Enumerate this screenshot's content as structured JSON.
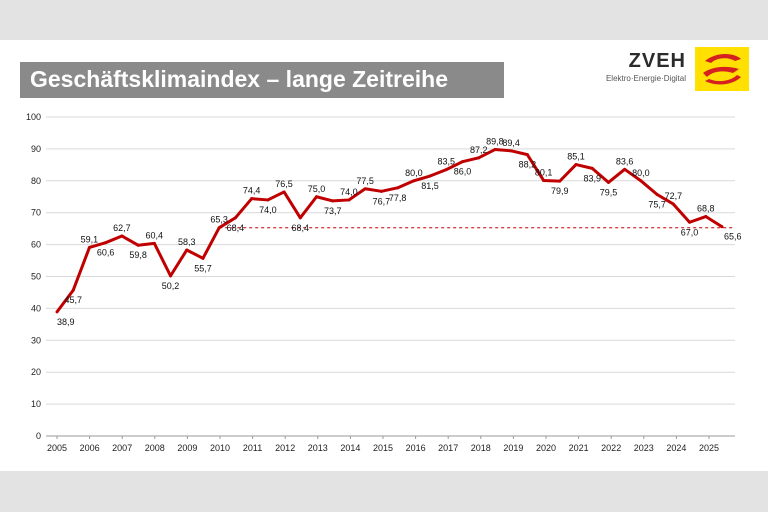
{
  "header": {
    "title": "Geschäftsklimaindex – lange Zeitreihe",
    "brand_name": "ZVEH",
    "brand_sub": "Elektro·Energie·Digital",
    "logo_icon": "zveh-logo-icon",
    "logo_color": "#ffe000"
  },
  "chart_data": {
    "type": "line",
    "title": "",
    "xlabel": "",
    "ylabel": "",
    "line_color": "#c00000",
    "reference_color": "#c00000",
    "reference_style": "dashed",
    "reference_value": 65.3,
    "ylim": [
      0,
      100
    ],
    "yticks": [
      0,
      10,
      20,
      30,
      40,
      50,
      60,
      70,
      80,
      90,
      100
    ],
    "xticks": [
      "2005",
      "2006",
      "2007",
      "2008",
      "2009",
      "2010",
      "2011",
      "2012",
      "2013",
      "2014",
      "2015",
      "2016",
      "2017",
      "2018",
      "2019",
      "2020",
      "2021",
      "2022",
      "2023",
      "2024",
      "2025"
    ],
    "grid": true,
    "series": [
      {
        "values": [
          38.9,
          45.7,
          59.1,
          60.6,
          62.7,
          59.8,
          60.4,
          50.2,
          58.3,
          55.7,
          65.3,
          68.4,
          74.4,
          74.0,
          76.5,
          68.4,
          75.0,
          73.7,
          74.0,
          77.5,
          76.7,
          77.8,
          80.0,
          81.5,
          83.5,
          86.0,
          87.2,
          89.8,
          89.4,
          88.2,
          80.1,
          79.9,
          85.1,
          83.9,
          79.5,
          83.6,
          80.0,
          75.7,
          72.7,
          67.0,
          68.8,
          65.6
        ],
        "labels": [
          "38,9",
          "45,7",
          "59,1",
          "60,6",
          "62,7",
          "59,8",
          "60,4",
          "50,2",
          "58,3",
          "55,7",
          "65,3",
          "68,4",
          "74,4",
          "74,0",
          "76,5",
          "68,4",
          "75,0",
          "73,7",
          "74,0",
          "77,5",
          "76,7",
          "77,8",
          "80,0",
          "81,5",
          "83,5",
          "86,0",
          "87,2",
          "89,8",
          "89,4",
          "88,2",
          "80,1",
          "79,9",
          "85,1",
          "83,9",
          "79,5",
          "83,6",
          "80,0",
          "75,7",
          "72,7",
          "67,0",
          "68,8",
          "65,6"
        ]
      }
    ]
  }
}
